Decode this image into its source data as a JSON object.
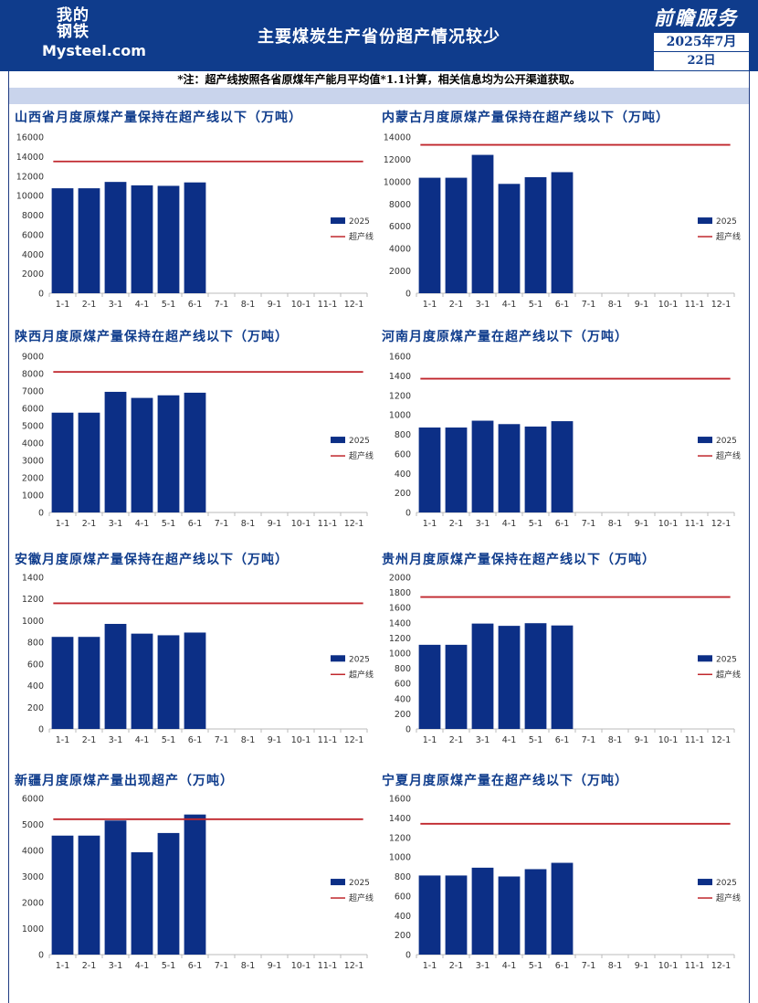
{
  "header": {
    "logo_cn_line1": "我的",
    "logo_cn_line2": "钢铁",
    "logo_en": "Mysteel.com",
    "title": "主要煤炭生产省份超产情况较少",
    "brand": "前瞻服务",
    "date": "2025年7月",
    "day": "22日"
  },
  "note": "*注：超产线按照各省原煤年产能月平均值*1.1计算，相关信息均为公开渠道获取。",
  "colors": {
    "bar": "#0c2f86",
    "threshold": "#c0262c",
    "title": "#0f3c8c",
    "header": "#0f3c8c"
  },
  "chart_data": [
    {
      "type": "bar",
      "title": "山西省月度原煤产量保持在超产线以下（万吨）",
      "categories": [
        "1-1",
        "2-1",
        "3-1",
        "4-1",
        "5-1",
        "6-1",
        "7-1",
        "8-1",
        "9-1",
        "10-1",
        "11-1",
        "12-1"
      ],
      "series": [
        {
          "name": "2025",
          "values": [
            10750,
            10750,
            11400,
            11050,
            11000,
            11350,
            null,
            null,
            null,
            null,
            null,
            null
          ]
        },
        {
          "name": "超产线",
          "line_value": 13500
        }
      ],
      "ylim": [
        0,
        16000
      ],
      "yticks": [
        0,
        2000,
        4000,
        6000,
        8000,
        10000,
        12000,
        14000,
        16000
      ]
    },
    {
      "type": "bar",
      "title": "内蒙古月度原煤产量保持在超产线以下（万吨）",
      "categories": [
        "1-1",
        "2-1",
        "3-1",
        "4-1",
        "5-1",
        "6-1",
        "7-1",
        "8-1",
        "9-1",
        "10-1",
        "11-1",
        "12-1"
      ],
      "series": [
        {
          "name": "2025",
          "values": [
            10350,
            10350,
            12400,
            9800,
            10400,
            10850,
            null,
            null,
            null,
            null,
            null,
            null
          ]
        },
        {
          "name": "超产线",
          "line_value": 13300
        }
      ],
      "ylim": [
        0,
        14000
      ],
      "yticks": [
        0,
        2000,
        4000,
        6000,
        8000,
        10000,
        12000,
        14000
      ]
    },
    {
      "type": "bar",
      "title": "陕西月度原煤产量保持在超产线以下（万吨）",
      "categories": [
        "1-1",
        "2-1",
        "3-1",
        "4-1",
        "5-1",
        "6-1",
        "7-1",
        "8-1",
        "9-1",
        "10-1",
        "11-1",
        "12-1"
      ],
      "series": [
        {
          "name": "2025",
          "values": [
            5750,
            5750,
            6950,
            6600,
            6750,
            6900,
            null,
            null,
            null,
            null,
            null,
            null
          ]
        },
        {
          "name": "超产线",
          "line_value": 8100
        }
      ],
      "ylim": [
        0,
        9000
      ],
      "yticks": [
        0,
        1000,
        2000,
        3000,
        4000,
        5000,
        6000,
        7000,
        8000,
        9000
      ]
    },
    {
      "type": "bar",
      "title": "河南月度原煤产量在超产线以下（万吨）",
      "categories": [
        "1-1",
        "2-1",
        "3-1",
        "4-1",
        "5-1",
        "6-1",
        "7-1",
        "8-1",
        "9-1",
        "10-1",
        "11-1",
        "12-1"
      ],
      "series": [
        {
          "name": "2025",
          "values": [
            870,
            870,
            940,
            905,
            880,
            935,
            null,
            null,
            null,
            null,
            null,
            null
          ]
        },
        {
          "name": "超产线",
          "line_value": 1370
        }
      ],
      "ylim": [
        0,
        1600
      ],
      "yticks": [
        0,
        200,
        400,
        600,
        800,
        1000,
        1200,
        1400,
        1600
      ]
    },
    {
      "type": "bar",
      "title": "安徽月度原煤产量保持在超产线以下（万吨）",
      "categories": [
        "1-1",
        "2-1",
        "3-1",
        "4-1",
        "5-1",
        "6-1",
        "7-1",
        "8-1",
        "9-1",
        "10-1",
        "11-1",
        "12-1"
      ],
      "series": [
        {
          "name": "2025",
          "values": [
            850,
            850,
            970,
            880,
            865,
            890,
            null,
            null,
            null,
            null,
            null,
            null
          ]
        },
        {
          "name": "超产线",
          "line_value": 1160
        }
      ],
      "ylim": [
        0,
        1400
      ],
      "yticks": [
        0,
        200,
        400,
        600,
        800,
        1000,
        1200,
        1400
      ]
    },
    {
      "type": "bar",
      "title": "贵州月度原煤产量保持在超产线以下（万吨）",
      "categories": [
        "1-1",
        "2-1",
        "3-1",
        "4-1",
        "5-1",
        "6-1",
        "7-1",
        "8-1",
        "9-1",
        "10-1",
        "11-1",
        "12-1"
      ],
      "series": [
        {
          "name": "2025",
          "values": [
            1110,
            1110,
            1390,
            1360,
            1395,
            1365,
            null,
            null,
            null,
            null,
            null,
            null
          ]
        },
        {
          "name": "超产线",
          "line_value": 1740
        }
      ],
      "ylim": [
        0,
        2000
      ],
      "yticks": [
        0,
        200,
        400,
        600,
        800,
        1000,
        1200,
        1400,
        1600,
        1800,
        2000
      ]
    },
    {
      "type": "bar",
      "title": "新疆月度原煤产量出现超产（万吨）",
      "categories": [
        "1-1",
        "2-1",
        "3-1",
        "4-1",
        "5-1",
        "6-1",
        "7-1",
        "8-1",
        "9-1",
        "10-1",
        "11-1",
        "12-1"
      ],
      "series": [
        {
          "name": "2025",
          "values": [
            4570,
            4570,
            5150,
            3930,
            4670,
            5380,
            null,
            null,
            null,
            null,
            null,
            null
          ]
        },
        {
          "name": "超产线",
          "line_value": 5200
        }
      ],
      "ylim": [
        0,
        6000
      ],
      "yticks": [
        0,
        1000,
        2000,
        3000,
        4000,
        5000,
        6000
      ]
    },
    {
      "type": "bar",
      "title": "宁夏月度原煤产量在超产线以下（万吨）",
      "categories": [
        "1-1",
        "2-1",
        "3-1",
        "4-1",
        "5-1",
        "6-1",
        "7-1",
        "8-1",
        "9-1",
        "10-1",
        "11-1",
        "12-1"
      ],
      "series": [
        {
          "name": "2025",
          "values": [
            810,
            810,
            890,
            800,
            875,
            940,
            null,
            null,
            null,
            null,
            null,
            null
          ]
        },
        {
          "name": "超产线",
          "line_value": 1340
        }
      ],
      "ylim": [
        0,
        1600
      ],
      "yticks": [
        0,
        200,
        400,
        600,
        800,
        1000,
        1200,
        1400,
        1600
      ]
    }
  ]
}
